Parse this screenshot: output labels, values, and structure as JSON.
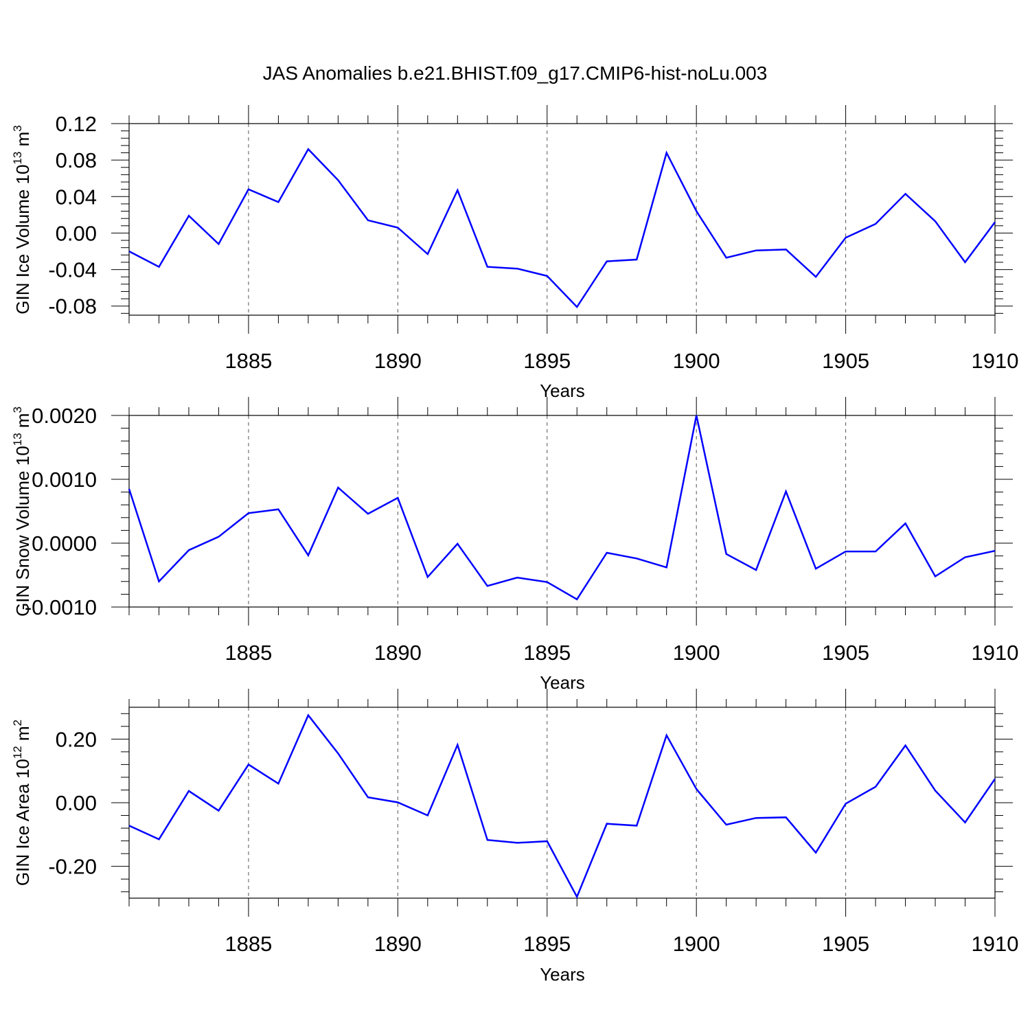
{
  "figure_title": "JAS Anomalies b.e21.BHIST.f09_g17.CMIP6-hist-noLu.003",
  "colors": {
    "line": "#0000ff",
    "axes": "#000000",
    "grid": "#555555"
  },
  "chart_data": [
    {
      "type": "line",
      "ylabel": {
        "base": "GIN Ice Volume 10",
        "sup": "13",
        "unit": " m",
        "unit_sup": "3"
      },
      "xlabel": "Years",
      "xlim": [
        1881,
        1910
      ],
      "ylim": [
        -0.09,
        0.12
      ],
      "ytick_values": [
        0.12,
        0.08,
        0.04,
        0.0,
        -0.04,
        -0.08
      ],
      "ytick_labels": [
        "0.12",
        "0.08",
        "0.04",
        "0.00",
        "-0.04",
        "-0.08"
      ],
      "xtick_values": [
        1885,
        1890,
        1895,
        1900,
        1905,
        1910
      ],
      "xtick_labels": [
        "1885",
        "1890",
        "1895",
        "1900",
        "1905",
        "1910"
      ],
      "x": [
        1881,
        1882,
        1883,
        1884,
        1885,
        1886,
        1887,
        1888,
        1889,
        1890,
        1891,
        1892,
        1893,
        1894,
        1895,
        1896,
        1897,
        1898,
        1899,
        1900,
        1901,
        1902,
        1903,
        1904,
        1905,
        1906,
        1907,
        1908,
        1909,
        1910
      ],
      "series": [
        {
          "name": "ice_volume",
          "values": [
            -0.02,
            -0.037,
            0.019,
            -0.012,
            0.048,
            0.034,
            0.092,
            0.058,
            0.014,
            0.006,
            -0.023,
            0.047,
            -0.037,
            -0.039,
            -0.047,
            -0.081,
            -0.031,
            -0.029,
            0.088,
            0.024,
            -0.027,
            -0.019,
            -0.018,
            -0.048,
            -0.005,
            0.01,
            0.043,
            0.013,
            -0.032,
            0.012
          ]
        }
      ]
    },
    {
      "type": "line",
      "ylabel": {
        "base": "GIN Snow Volume 10",
        "sup": "13",
        "unit": " m",
        "unit_sup": "3"
      },
      "xlabel": "Years",
      "xlim": [
        1881,
        1910
      ],
      "ylim": [
        -0.001,
        0.002
      ],
      "ytick_values": [
        0.002,
        0.001,
        0.0,
        -0.001
      ],
      "ytick_labels": [
        "0.0020",
        "0.0010",
        "0.0000",
        "-0.0010"
      ],
      "xtick_values": [
        1885,
        1890,
        1895,
        1900,
        1905,
        1910
      ],
      "xtick_labels": [
        "1885",
        "1890",
        "1895",
        "1900",
        "1905",
        "1910"
      ],
      "x": [
        1881,
        1882,
        1883,
        1884,
        1885,
        1886,
        1887,
        1888,
        1889,
        1890,
        1891,
        1892,
        1893,
        1894,
        1895,
        1896,
        1897,
        1898,
        1899,
        1900,
        1901,
        1902,
        1903,
        1904,
        1905,
        1906,
        1907,
        1908,
        1909,
        1910
      ],
      "series": [
        {
          "name": "snow_volume",
          "values": [
            0.00085,
            -0.0006,
            -0.00011,
            0.0001,
            0.00047,
            0.00053,
            -0.00019,
            0.00087,
            0.00046,
            0.00071,
            -0.00053,
            -1e-05,
            -0.00067,
            -0.00054,
            -0.00061,
            -0.00088,
            -0.00015,
            -0.00024,
            -0.00038,
            0.002,
            -0.00017,
            -0.00042,
            0.00081,
            -0.0004,
            -0.00013,
            -0.00013,
            0.00031,
            -0.00052,
            -0.00022,
            -0.00012
          ]
        }
      ]
    },
    {
      "type": "line",
      "ylabel": {
        "base": "GIN Ice Area 10",
        "sup": "12",
        "unit": " m",
        "unit_sup": "2"
      },
      "xlabel": "Years",
      "xlim": [
        1881,
        1910
      ],
      "ylim": [
        -0.3,
        0.3
      ],
      "ytick_values": [
        0.2,
        0.0,
        -0.2
      ],
      "ytick_labels": [
        "0.20",
        "0.00",
        "-0.20"
      ],
      "xtick_values": [
        1885,
        1890,
        1895,
        1900,
        1905,
        1910
      ],
      "xtick_labels": [
        "1885",
        "1890",
        "1895",
        "1900",
        "1905",
        "1910"
      ],
      "x": [
        1881,
        1882,
        1883,
        1884,
        1885,
        1886,
        1887,
        1888,
        1889,
        1890,
        1891,
        1892,
        1893,
        1894,
        1895,
        1896,
        1897,
        1898,
        1899,
        1900,
        1901,
        1902,
        1903,
        1904,
        1905,
        1906,
        1907,
        1908,
        1909,
        1910
      ],
      "series": [
        {
          "name": "ice_area",
          "values": [
            -0.072,
            -0.115,
            0.037,
            -0.025,
            0.12,
            0.06,
            0.275,
            0.155,
            0.017,
            0.001,
            -0.04,
            0.182,
            -0.117,
            -0.126,
            -0.121,
            -0.296,
            -0.066,
            -0.072,
            0.212,
            0.043,
            -0.069,
            -0.048,
            -0.046,
            -0.157,
            -0.003,
            0.05,
            0.18,
            0.038,
            -0.062,
            0.075
          ]
        }
      ]
    }
  ]
}
